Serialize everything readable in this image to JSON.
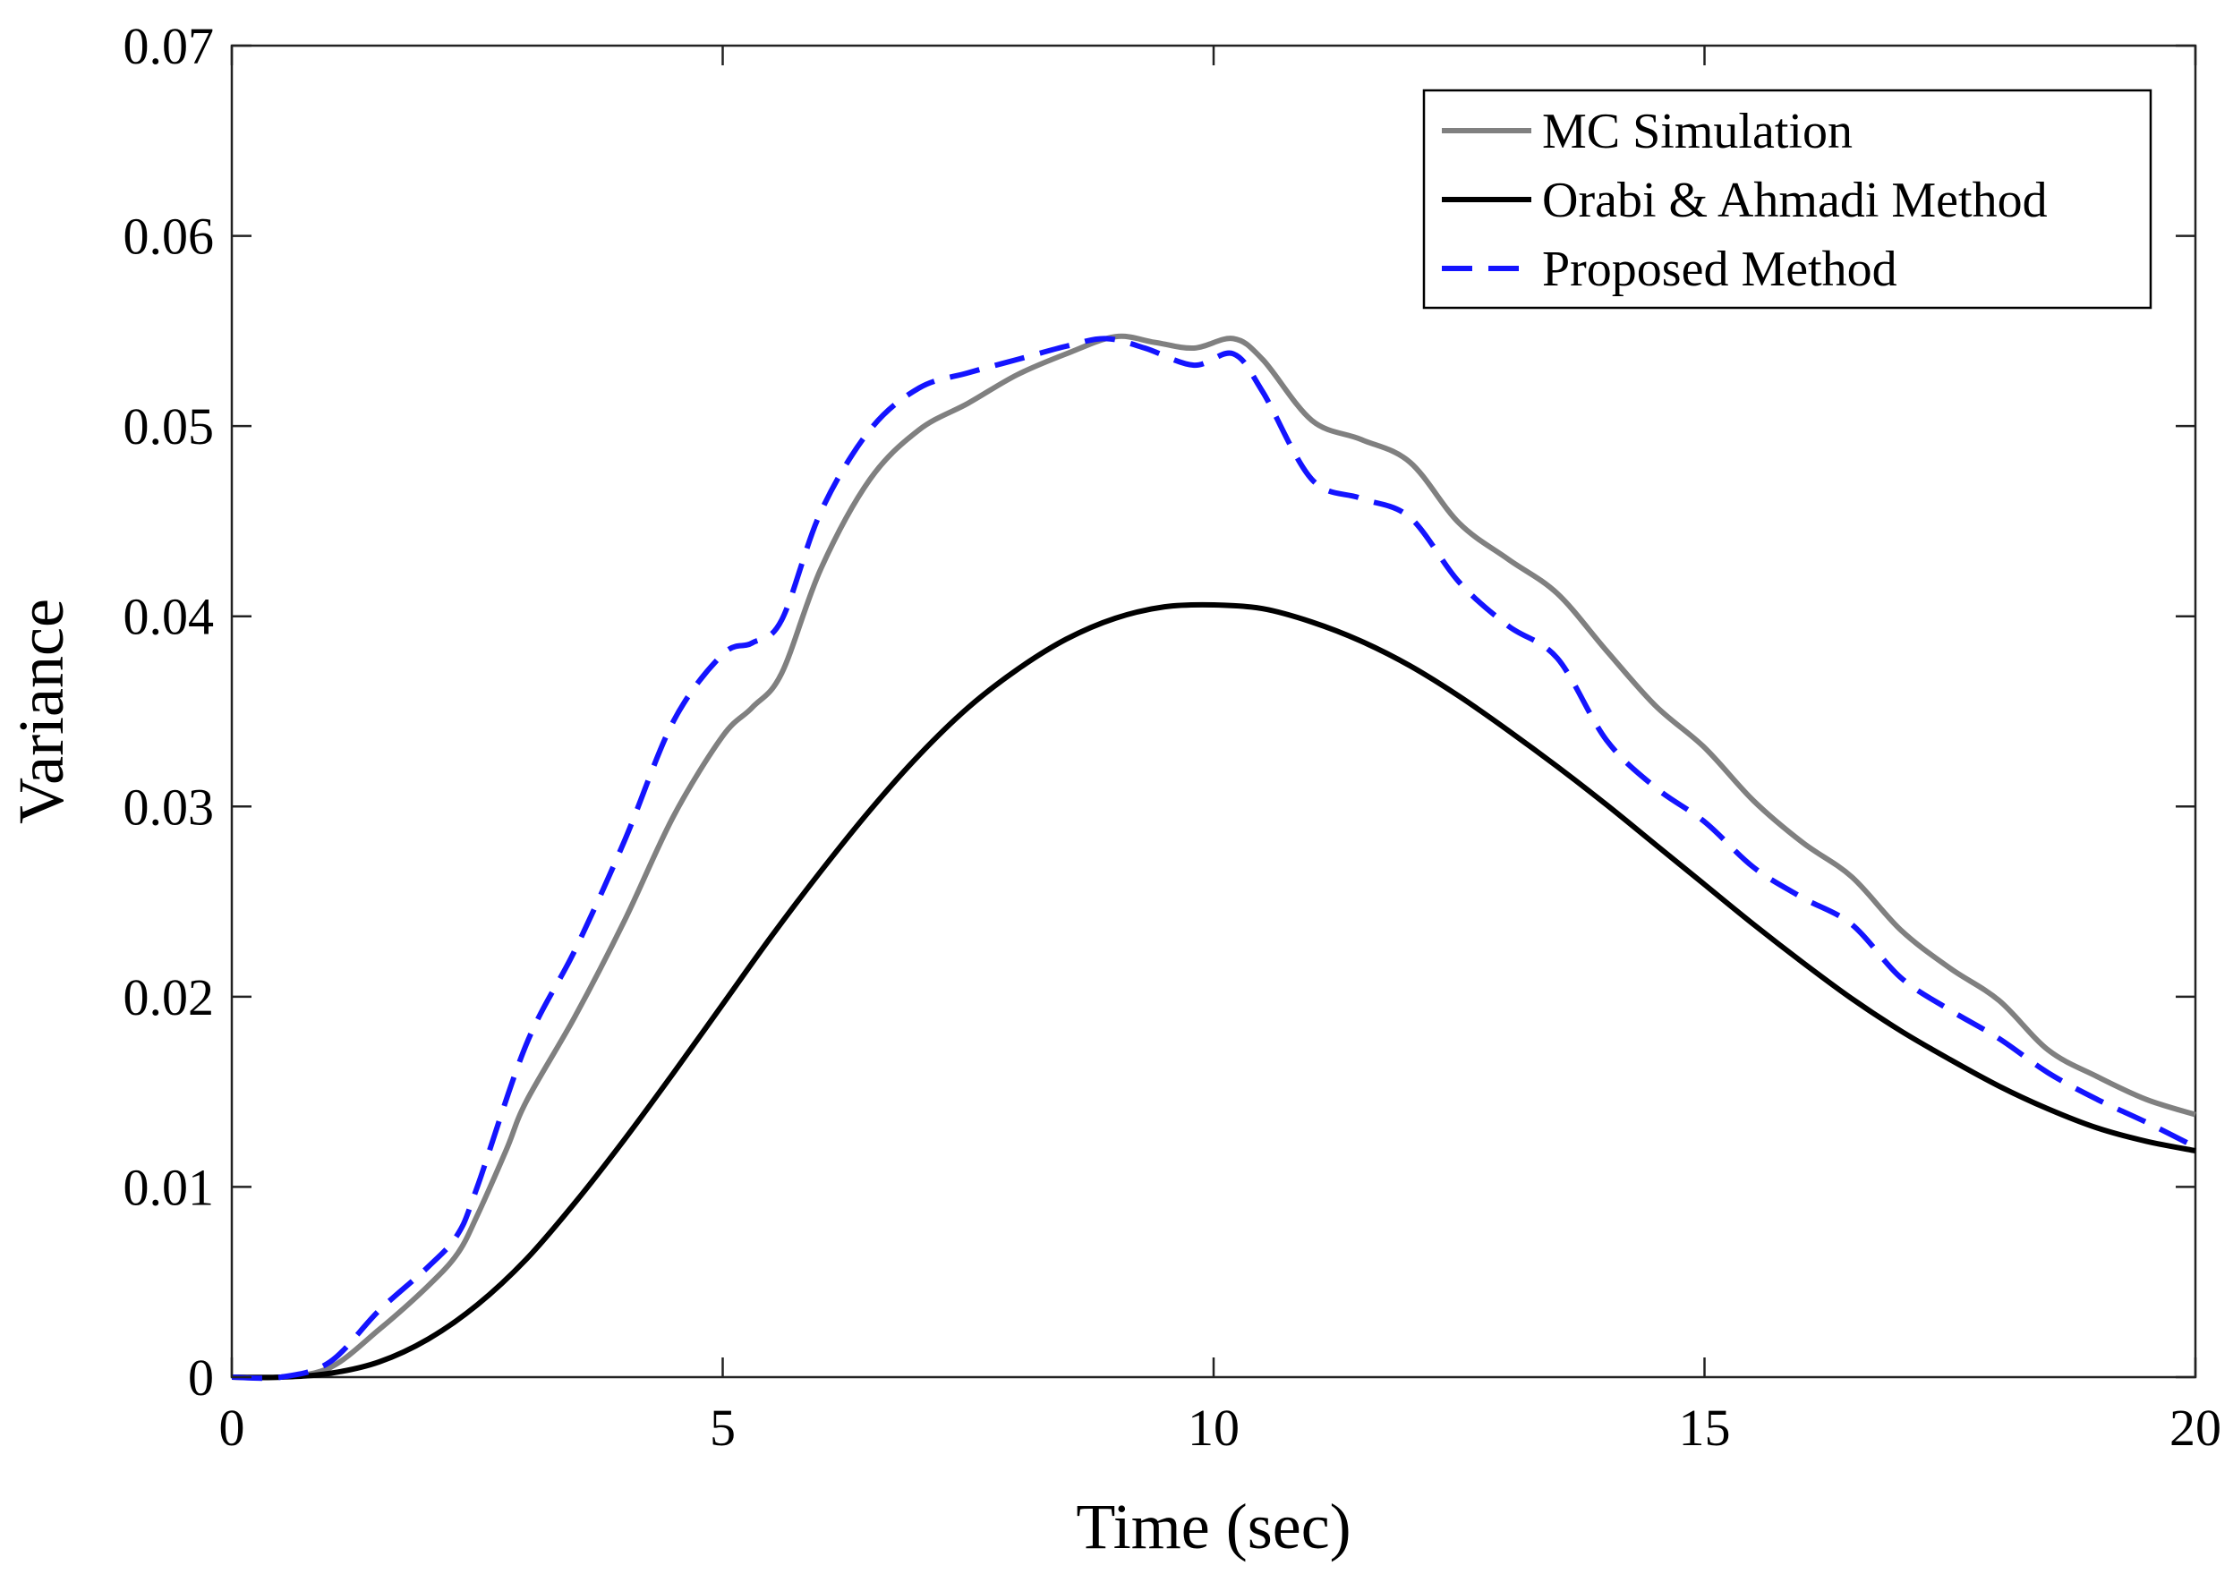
{
  "chart_data": {
    "type": "line",
    "xlabel": "Time (sec)",
    "ylabel": "Variance",
    "xlim": [
      0,
      20
    ],
    "ylim": [
      0,
      0.07
    ],
    "xticks": [
      0,
      5,
      10,
      15,
      20
    ],
    "xtick_labels": [
      "0",
      "5",
      "10",
      "15",
      "20"
    ],
    "yticks": [
      0,
      0.01,
      0.02,
      0.03,
      0.04,
      0.05,
      0.06,
      0.07
    ],
    "ytick_labels": [
      "0",
      "0.01",
      "0.02",
      "0.03",
      "0.04",
      "0.05",
      "0.06",
      "0.07"
    ],
    "grid": false,
    "legend_position": "top-right",
    "series": [
      {
        "name": "MC Simulation",
        "color": "#808080",
        "dash": "solid",
        "points": [
          [
            0,
            0
          ],
          [
            0.5,
            0
          ],
          [
            1,
            0.0005
          ],
          [
            1.5,
            0.0025
          ],
          [
            2,
            0.0048
          ],
          [
            2.3,
            0.0065
          ],
          [
            2.5,
            0.0085
          ],
          [
            2.8,
            0.012
          ],
          [
            3,
            0.0145
          ],
          [
            3.5,
            0.019
          ],
          [
            4,
            0.024
          ],
          [
            4.5,
            0.0295
          ],
          [
            5,
            0.0337
          ],
          [
            5.3,
            0.0352
          ],
          [
            5.6,
            0.037
          ],
          [
            6,
            0.0425
          ],
          [
            6.5,
            0.0472
          ],
          [
            7,
            0.0498
          ],
          [
            7.5,
            0.0512
          ],
          [
            8,
            0.0527
          ],
          [
            8.5,
            0.0538
          ],
          [
            9,
            0.0547
          ],
          [
            9.4,
            0.0544
          ],
          [
            9.8,
            0.0541
          ],
          [
            10.2,
            0.0546
          ],
          [
            10.5,
            0.0535
          ],
          [
            11,
            0.0503
          ],
          [
            11.5,
            0.0493
          ],
          [
            12,
            0.0481
          ],
          [
            12.5,
            0.0449
          ],
          [
            13,
            0.043
          ],
          [
            13.5,
            0.0412
          ],
          [
            14,
            0.0382
          ],
          [
            14.5,
            0.0353
          ],
          [
            15,
            0.0331
          ],
          [
            15.5,
            0.0303
          ],
          [
            16,
            0.0281
          ],
          [
            16.5,
            0.0263
          ],
          [
            17,
            0.0235
          ],
          [
            17.5,
            0.0215
          ],
          [
            18,
            0.0198
          ],
          [
            18.5,
            0.0172
          ],
          [
            19,
            0.0158
          ],
          [
            19.5,
            0.0146
          ],
          [
            20,
            0.0138
          ]
        ]
      },
      {
        "name": "Orabi & Ahmadi Method",
        "color": "#000000",
        "dash": "solid",
        "points": [
          [
            0,
            0
          ],
          [
            0.5,
            0
          ],
          [
            1,
            0.0002
          ],
          [
            1.5,
            0.0008
          ],
          [
            2,
            0.002
          ],
          [
            2.5,
            0.0038
          ],
          [
            3,
            0.0062
          ],
          [
            3.5,
            0.0092
          ],
          [
            4,
            0.0125
          ],
          [
            4.5,
            0.016
          ],
          [
            5,
            0.0196
          ],
          [
            5.5,
            0.0232
          ],
          [
            6,
            0.0266
          ],
          [
            6.5,
            0.0298
          ],
          [
            7,
            0.0327
          ],
          [
            7.5,
            0.0352
          ],
          [
            8,
            0.0372
          ],
          [
            8.5,
            0.0388
          ],
          [
            9,
            0.0399
          ],
          [
            9.5,
            0.0405
          ],
          [
            10,
            0.0406
          ],
          [
            10.5,
            0.0404
          ],
          [
            11,
            0.0397
          ],
          [
            11.5,
            0.0387
          ],
          [
            12,
            0.0374
          ],
          [
            12.5,
            0.0358
          ],
          [
            13,
            0.034
          ],
          [
            13.5,
            0.0321
          ],
          [
            14,
            0.0301
          ],
          [
            14.5,
            0.028
          ],
          [
            15,
            0.0259
          ],
          [
            15.5,
            0.0238
          ],
          [
            16,
            0.0218
          ],
          [
            16.5,
            0.0199
          ],
          [
            17,
            0.0182
          ],
          [
            17.5,
            0.0167
          ],
          [
            18,
            0.0153
          ],
          [
            18.5,
            0.0141
          ],
          [
            19,
            0.0131
          ],
          [
            19.5,
            0.0124
          ],
          [
            20,
            0.0119
          ]
        ]
      },
      {
        "name": "Proposed Method",
        "color": "#1414ff",
        "dash": "dashed",
        "points": [
          [
            0,
            0
          ],
          [
            0.5,
            0
          ],
          [
            1,
            0.0008
          ],
          [
            1.5,
            0.0035
          ],
          [
            2,
            0.0058
          ],
          [
            2.3,
            0.0075
          ],
          [
            2.5,
            0.01
          ],
          [
            3,
            0.0175
          ],
          [
            3.5,
            0.0225
          ],
          [
            4,
            0.0282
          ],
          [
            4.5,
            0.0345
          ],
          [
            5,
            0.038
          ],
          [
            5.3,
            0.0386
          ],
          [
            5.6,
            0.0398
          ],
          [
            6,
            0.0455
          ],
          [
            6.5,
            0.0498
          ],
          [
            7,
            0.052
          ],
          [
            7.5,
            0.0528
          ],
          [
            8,
            0.0535
          ],
          [
            8.5,
            0.0542
          ],
          [
            8.9,
            0.0546
          ],
          [
            9.3,
            0.0541
          ],
          [
            9.8,
            0.0532
          ],
          [
            10.2,
            0.0538
          ],
          [
            10.5,
            0.0518
          ],
          [
            11,
            0.0472
          ],
          [
            11.5,
            0.0462
          ],
          [
            12,
            0.0452
          ],
          [
            12.5,
            0.0418
          ],
          [
            13,
            0.0395
          ],
          [
            13.5,
            0.0378
          ],
          [
            14,
            0.0335
          ],
          [
            14.5,
            0.031
          ],
          [
            15,
            0.0292
          ],
          [
            15.5,
            0.0268
          ],
          [
            16,
            0.0252
          ],
          [
            16.5,
            0.0238
          ],
          [
            17,
            0.021
          ],
          [
            17.5,
            0.0193
          ],
          [
            18,
            0.0178
          ],
          [
            18.5,
            0.016
          ],
          [
            19,
            0.0146
          ],
          [
            19.5,
            0.0134
          ],
          [
            20,
            0.0121
          ]
        ]
      }
    ]
  }
}
